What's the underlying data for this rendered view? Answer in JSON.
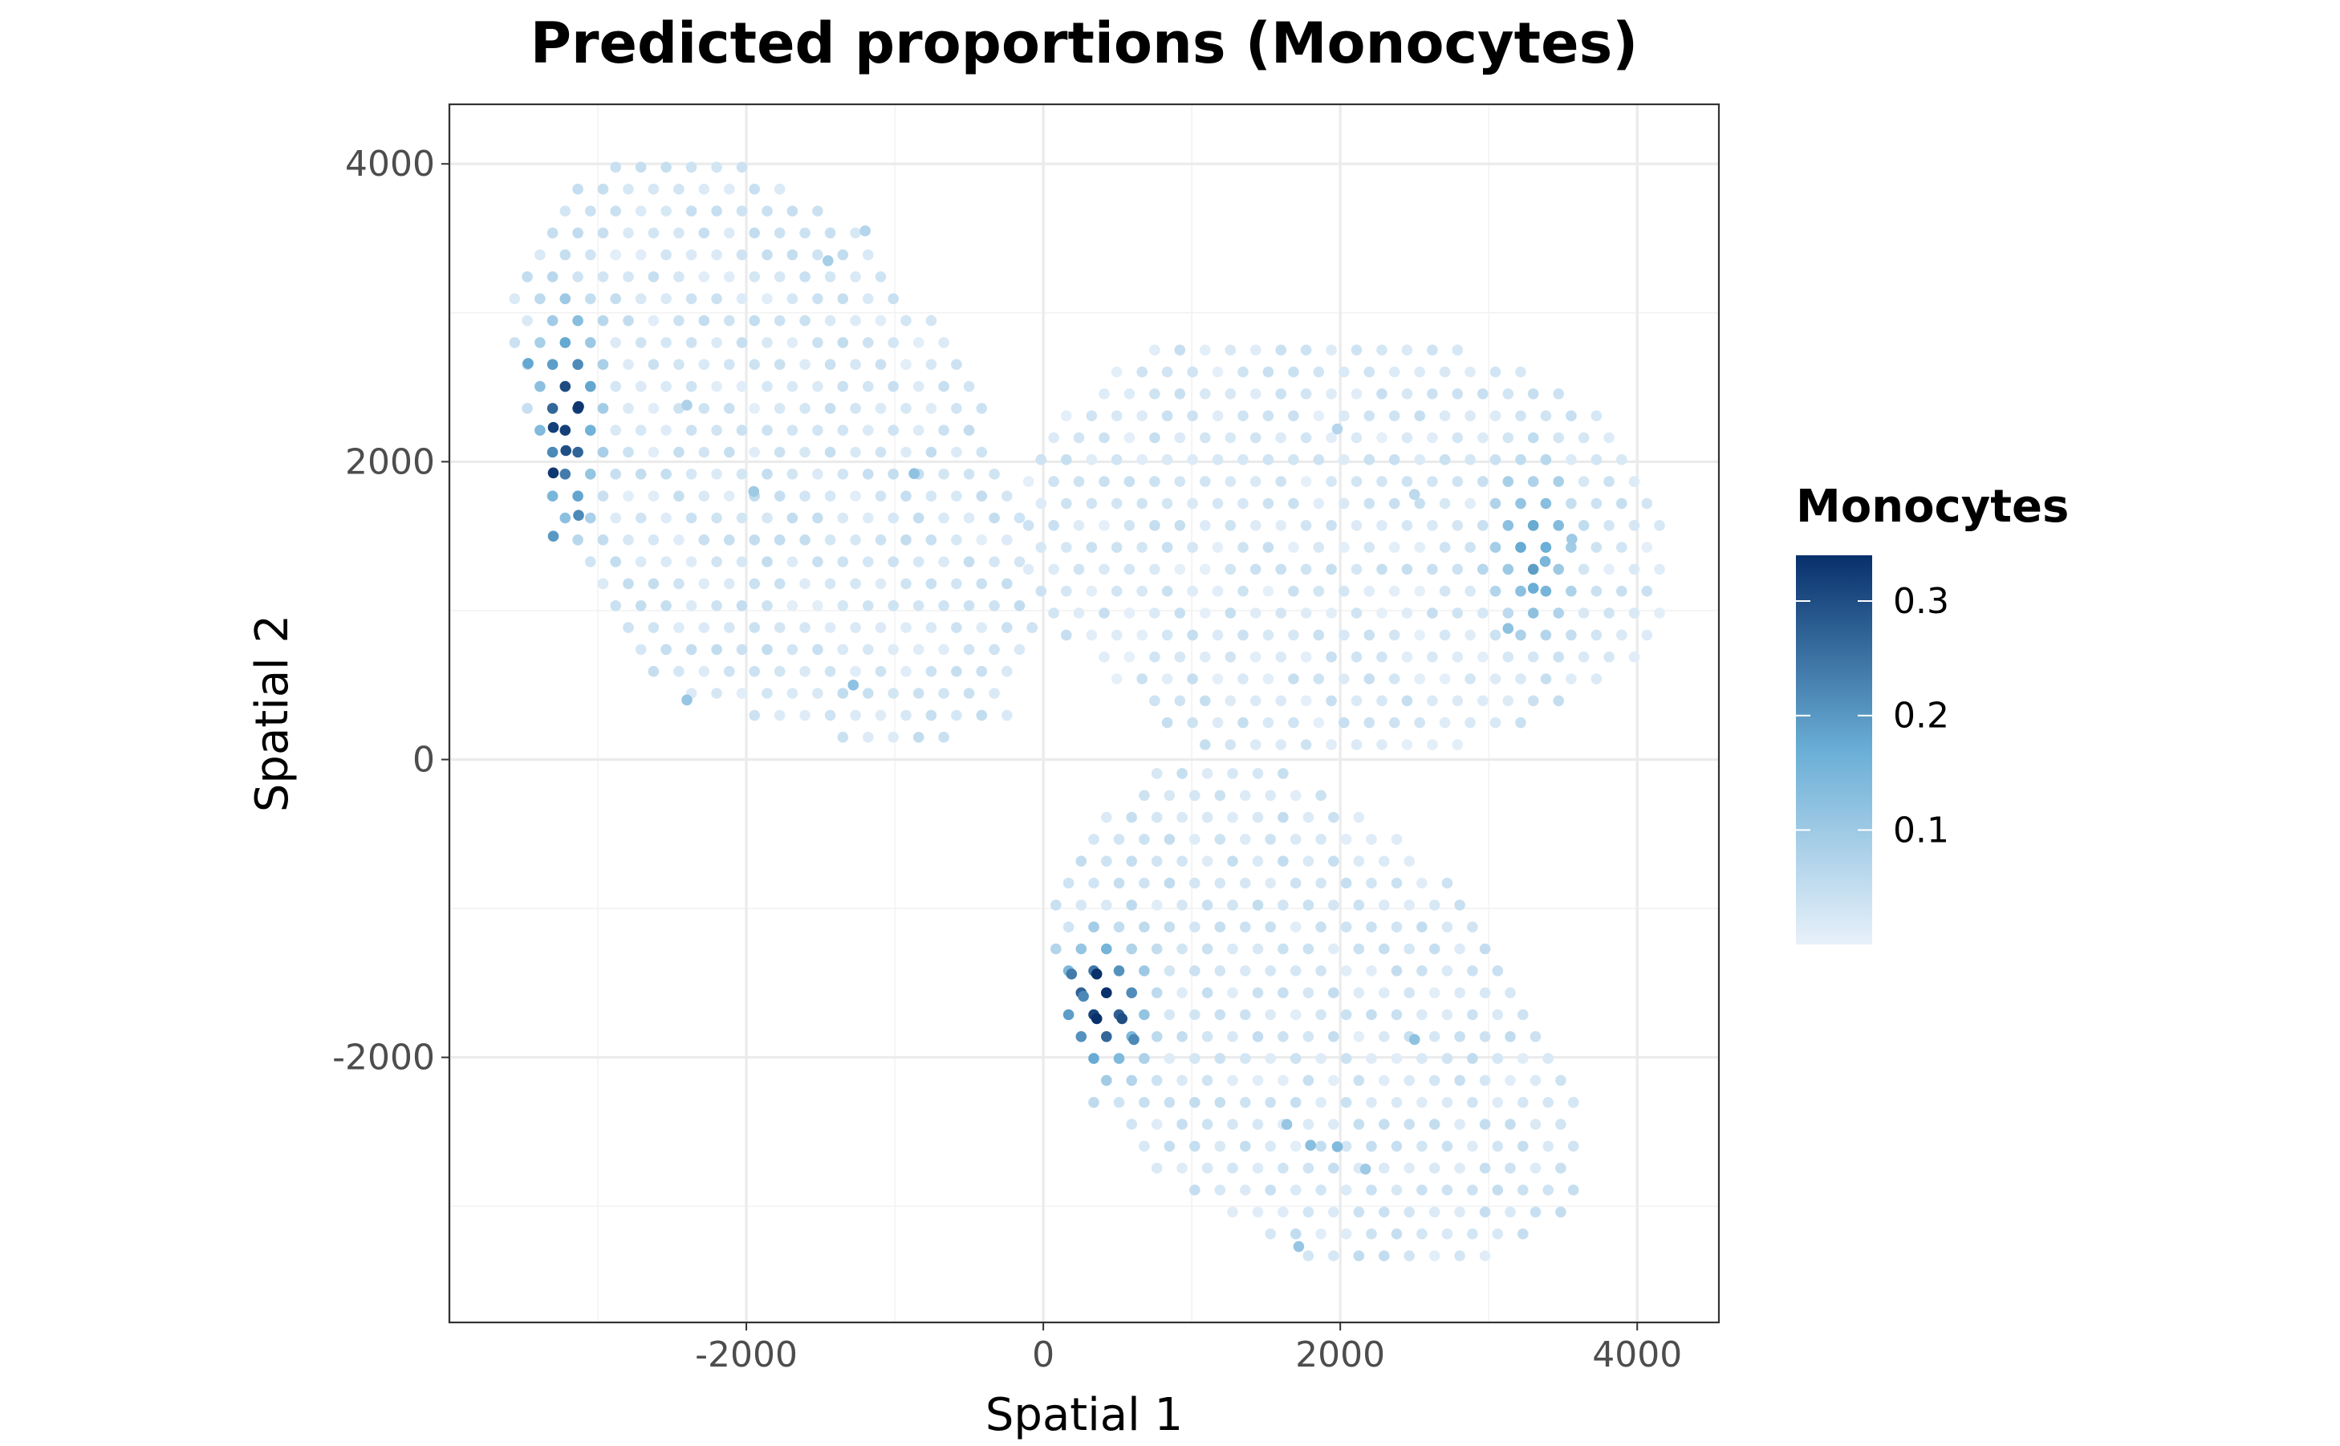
{
  "chart_data": {
    "type": "scatter",
    "title": "Predicted proportions (Monocytes)",
    "xlabel": "Spatial 1",
    "ylabel": "Spatial 2",
    "xlim": [
      -4000,
      4550
    ],
    "ylim": [
      -3780,
      4400
    ],
    "x_ticks": [
      -2000,
      0,
      2000,
      4000
    ],
    "x_tick_labels": [
      "-2000",
      "0",
      "2000",
      "4000"
    ],
    "y_ticks": [
      -2000,
      0,
      2000,
      4000
    ],
    "y_tick_labels": [
      "-2000",
      "0",
      "2000",
      "4000"
    ],
    "grid": true,
    "spot_spacing": 170,
    "color_scale": {
      "name": "Monocytes",
      "low": 0.0,
      "high": 0.34,
      "low_color": "#e8f1fa",
      "mid_color": "#6aaed6",
      "high_color": "#08306b",
      "breaks": [
        0.1,
        0.2,
        0.3
      ],
      "break_labels": [
        "0.1",
        "0.2",
        "0.3"
      ],
      "legend_position": "right"
    },
    "regions": [
      {
        "region": "upper-left",
        "hex_polygon": [
          [
            -2950,
            4050
          ],
          [
            -1950,
            4000
          ],
          [
            -1450,
            3750
          ],
          [
            -1150,
            3450
          ],
          [
            -500,
            2700
          ],
          [
            -100,
            1500
          ],
          [
            -50,
            800
          ],
          [
            -250,
            200
          ],
          [
            -600,
            150
          ],
          [
            -1500,
            150
          ],
          [
            -2500,
            400
          ],
          [
            -3000,
            1000
          ],
          [
            -3300,
            1650
          ],
          [
            -3560,
            2650
          ],
          [
            -3560,
            3200
          ],
          [
            -3450,
            3550
          ],
          [
            -3100,
            3900
          ]
        ],
        "hotspot": {
          "x": -3200,
          "y": 2300,
          "sx": 120,
          "sy": 430,
          "peak": 0.32
        },
        "base": 0.03,
        "extra_spots": [
          {
            "x": -3130,
            "y": 2370,
            "v": 0.33
          },
          {
            "x": -3300,
            "y": 2230,
            "v": 0.32
          },
          {
            "x": -3215,
            "y": 2075,
            "v": 0.3
          },
          {
            "x": -3300,
            "y": 1925,
            "v": 0.33
          },
          {
            "x": -3130,
            "y": 1640,
            "v": 0.22
          },
          {
            "x": -3300,
            "y": 1500,
            "v": 0.2
          },
          {
            "x": -3470,
            "y": 2660,
            "v": 0.18
          },
          {
            "x": -2400,
            "y": 2380,
            "v": 0.08
          },
          {
            "x": -1950,
            "y": 1800,
            "v": 0.1
          },
          {
            "x": -870,
            "y": 1920,
            "v": 0.12
          },
          {
            "x": -1280,
            "y": 500,
            "v": 0.12
          },
          {
            "x": -2400,
            "y": 400,
            "v": 0.11
          },
          {
            "x": -1450,
            "y": 3350,
            "v": 0.09
          },
          {
            "x": -1200,
            "y": 3550,
            "v": 0.07
          }
        ]
      },
      {
        "region": "upper-right",
        "hex_polygon": [
          [
            800,
            2780
          ],
          [
            2700,
            2780
          ],
          [
            3100,
            2700
          ],
          [
            3700,
            2400
          ],
          [
            4100,
            1900
          ],
          [
            4250,
            1300
          ],
          [
            4150,
            750
          ],
          [
            3500,
            300
          ],
          [
            2800,
            100
          ],
          [
            1000,
            100
          ],
          [
            -100,
            1000
          ],
          [
            -100,
            2100
          ],
          [
            300,
            2500
          ]
        ],
        "hotspot": {
          "x": 3300,
          "y": 1400,
          "sx": 180,
          "sy": 350,
          "peak": 0.16
        },
        "base": 0.025,
        "extra_spots": [
          {
            "x": 3300,
            "y": 1150,
            "v": 0.17
          },
          {
            "x": 3380,
            "y": 1330,
            "v": 0.15
          },
          {
            "x": 3130,
            "y": 880,
            "v": 0.12
          },
          {
            "x": 3560,
            "y": 1480,
            "v": 0.1
          },
          {
            "x": 1980,
            "y": 2220,
            "v": 0.07
          },
          {
            "x": 2500,
            "y": 1780,
            "v": 0.06
          }
        ]
      },
      {
        "region": "lower",
        "hex_polygon": [
          [
            750,
            -80
          ],
          [
            1700,
            -80
          ],
          [
            2300,
            -450
          ],
          [
            2900,
            -900
          ],
          [
            3200,
            -1400
          ],
          [
            3600,
            -2200
          ],
          [
            3600,
            -3000
          ],
          [
            3000,
            -3350
          ],
          [
            2100,
            -3480
          ],
          [
            1500,
            -3250
          ],
          [
            800,
            -2800
          ],
          [
            300,
            -2300
          ],
          [
            0,
            -1050
          ],
          [
            250,
            -480
          ]
        ],
        "hotspot": {
          "x": 400,
          "y": -1650,
          "sx": 180,
          "sy": 260,
          "peak": 0.33
        },
        "base": 0.03,
        "extra_spots": [
          {
            "x": 360,
            "y": -1440,
            "v": 0.34
          },
          {
            "x": 360,
            "y": -1740,
            "v": 0.34
          },
          {
            "x": 530,
            "y": -1740,
            "v": 0.3
          },
          {
            "x": 190,
            "y": -1440,
            "v": 0.24
          },
          {
            "x": 270,
            "y": -1590,
            "v": 0.22
          },
          {
            "x": 610,
            "y": -1880,
            "v": 0.22
          },
          {
            "x": 1980,
            "y": -2600,
            "v": 0.14
          },
          {
            "x": 1800,
            "y": -2590,
            "v": 0.13
          },
          {
            "x": 1640,
            "y": -2450,
            "v": 0.11
          },
          {
            "x": 2500,
            "y": -1880,
            "v": 0.12
          },
          {
            "x": 1720,
            "y": -3270,
            "v": 0.11
          },
          {
            "x": 2170,
            "y": -2750,
            "v": 0.1
          }
        ]
      }
    ]
  }
}
